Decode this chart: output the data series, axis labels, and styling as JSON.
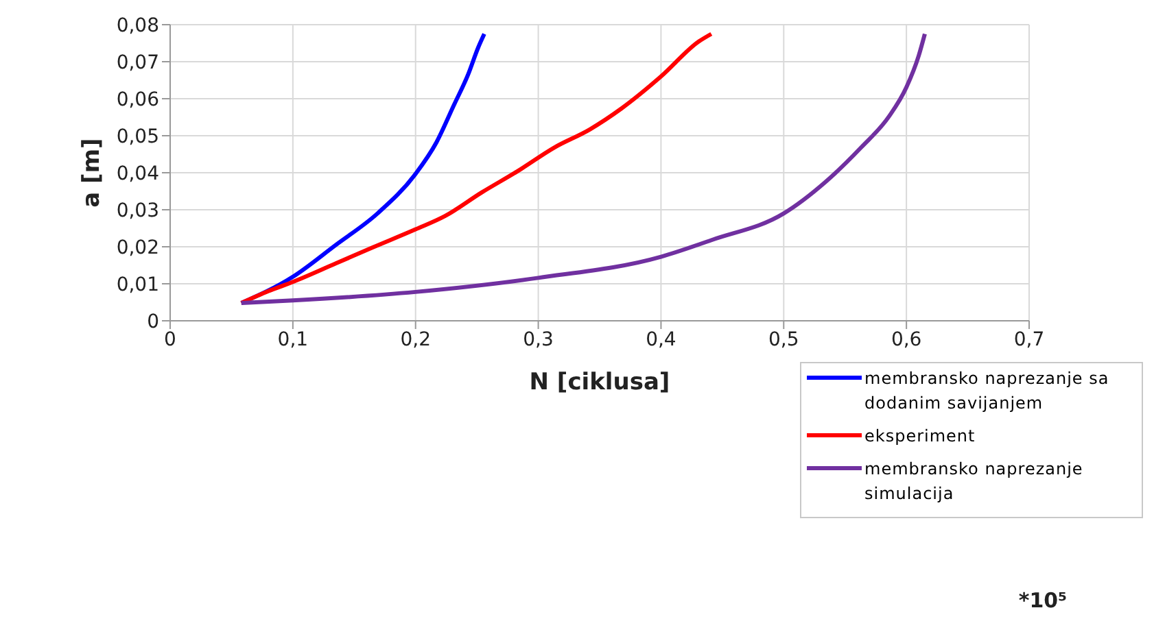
{
  "chart_data": {
    "type": "line",
    "xlabel": "N [ciklusa]",
    "ylabel": "a [m]",
    "annotations": [
      "*10⁵"
    ],
    "xlim": [
      0,
      0.7
    ],
    "xticks": [
      0,
      {
        "value": 0.1,
        "label": "0,1"
      },
      {
        "value": 0.2,
        "label": "0,2"
      },
      {
        "value": 0.3,
        "label": "0,3"
      },
      {
        "value": 0.4,
        "label": "0,4"
      },
      {
        "value": 0.5,
        "label": "0,5"
      },
      {
        "value": 0.6,
        "label": "0,6"
      },
      {
        "value": 0.7,
        "label": "0,7"
      }
    ],
    "ylim": [
      0,
      0.08
    ],
    "yticks": [
      0,
      {
        "value": 0.01,
        "label": "0,01"
      },
      {
        "value": 0.02,
        "label": "0,02"
      },
      {
        "value": 0.03,
        "label": "0,03"
      },
      {
        "value": 0.04,
        "label": "0,04"
      },
      {
        "value": 0.05,
        "label": "0,05"
      },
      {
        "value": 0.06,
        "label": "0,06"
      },
      {
        "value": 0.07,
        "label": "0,07"
      },
      {
        "value": 0.08,
        "label": "0,08"
      }
    ],
    "grid": true,
    "legend": "bottom right",
    "marker": "none",
    "line_style": "solid",
    "series": [
      {
        "name": "membransko naprezanje sa dodanim savijanjem",
        "color": "#0000ff",
        "x": [
          0.058,
          0.1,
          0.135,
          0.169,
          0.2,
          0.217,
          0.231,
          0.243,
          0.251,
          0.256
        ],
        "values": [
          0.0048,
          0.0119,
          0.0205,
          0.029,
          0.0397,
          0.0482,
          0.0581,
          0.0667,
          0.0738,
          0.0775
        ]
      },
      {
        "name": "eksperiment",
        "color": "#ff0000",
        "x": [
          0.058,
          0.08,
          0.1,
          0.135,
          0.165,
          0.2,
          0.224,
          0.254,
          0.283,
          0.313,
          0.342,
          0.368,
          0.4,
          0.431,
          0.441
        ],
        "values": [
          0.0048,
          0.008,
          0.0105,
          0.0155,
          0.0198,
          0.0247,
          0.0283,
          0.0347,
          0.0404,
          0.0468,
          0.0517,
          0.0574,
          0.066,
          0.0755,
          0.0775
        ]
      },
      {
        "name": "membransko naprezanje simulacija",
        "color": "#7030a0",
        "x": [
          0.058,
          0.1,
          0.2,
          0.3,
          0.4,
          0.442,
          0.5,
          0.534,
          0.563,
          0.586,
          0.6,
          0.61,
          0.615
        ],
        "values": [
          0.0048,
          0.0055,
          0.0078,
          0.0116,
          0.0173,
          0.0219,
          0.029,
          0.0375,
          0.0468,
          0.0553,
          0.0631,
          0.0716,
          0.0775
        ]
      }
    ]
  }
}
